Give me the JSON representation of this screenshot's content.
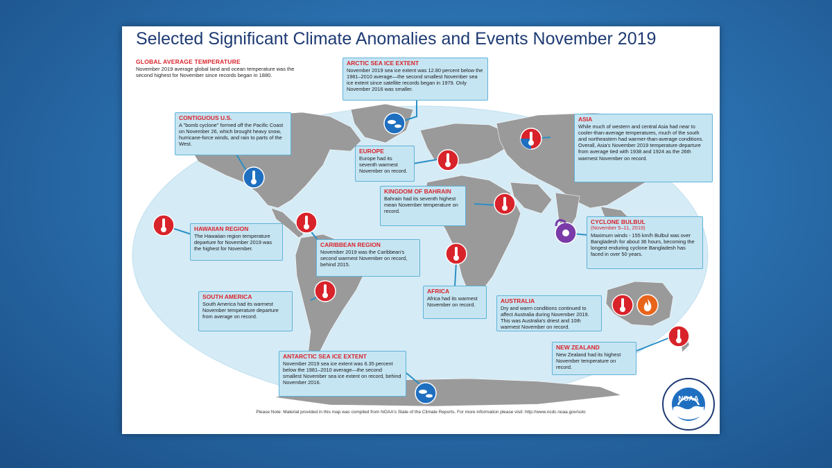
{
  "title": "Selected Significant Climate Anomalies and Events November 2019",
  "global": {
    "title": "GLOBAL AVERAGE TEMPERATURE",
    "text": "November 2019 average global land and ocean temperature was the second highest for November since records began in 1880."
  },
  "events": {
    "arctic": {
      "title": "ARCTIC SEA ICE EXTENT",
      "text": "November 2019 sea ice extent was 12.80 percent below the 1981–2010 average—the second smallest November sea ice extent since satellite records began in 1979. Only November 2016 was smaller.",
      "icon": "sea-ice-icon",
      "color": "#1f6fc0"
    },
    "contiguous_us": {
      "title": "CONTIGUOUS U.S.",
      "text": "A \"bomb cyclone\" formed off the Pacific Coast on November 26, which brought heavy snow, hurricane-force winds, and rain to parts of the West.",
      "icon": "thermometer-cool-icon",
      "color": "#1f6fc0"
    },
    "europe": {
      "title": "EUROPE",
      "text": "Europe had its seventh warmest November on record.",
      "icon": "thermometer-warm-icon",
      "color": "#d8232a"
    },
    "asia": {
      "title": "ASIA",
      "text": "While much of western and central Asia had near to cooler-than-average temperatures, much of the south and northeastern had warmer-than-average conditions. Overall, Asia's November 2019 temperature departure from average tied with 1938 and 1924 as the 26th warmest November on record.",
      "icon": "thermometer-mixed-icon",
      "color": "#d8232a"
    },
    "bahrain": {
      "title": "KINGDOM OF BAHRAIN",
      "text": "Bahrain had its seventh highest mean November temperature on record.",
      "icon": "thermometer-warm-icon",
      "color": "#d8232a"
    },
    "cyclone": {
      "title": "CYCLONE BULBUL",
      "subtitle": "(November 5–11, 2019)",
      "text": "Maximum winds - 155 km/h Bulbul was over Bangladesh for about 36 hours, becoming the longest enduring cyclone Bangladesh has faced in over 50 years.",
      "icon": "cyclone-icon",
      "color": "#7a3aa8"
    },
    "hawaii": {
      "title": "HAWAIIAN REGION",
      "text": "The Hawaiian region temperature departure for November 2019 was the highest for November.",
      "icon": "thermometer-warm-icon",
      "color": "#d8232a"
    },
    "caribbean": {
      "title": "CARIBBEAN REGION",
      "text": "November 2019 was the Caribbean's second warmest November on record, behind 2015.",
      "icon": "thermometer-warm-icon",
      "color": "#d8232a"
    },
    "africa": {
      "title": "AFRICA",
      "text": "Africa had its warmest November on record.",
      "icon": "thermometer-warm-icon",
      "color": "#d8232a"
    },
    "south_america": {
      "title": "SOUTH AMERICA",
      "text": "South America had its warmest November temperature departure from average on record.",
      "icon": "thermometer-warm-icon",
      "color": "#d8232a"
    },
    "australia": {
      "title": "AUSTRALIA",
      "text": "Dry and warm conditions continued to affect Australia during November 2019. This was Australia's driest and 10th warmest November on record.",
      "icon": "fire-icon",
      "color": "#e8641b"
    },
    "new_zealand": {
      "title": "NEW ZEALAND",
      "text": "New Zealand had its highest November temperature on record.",
      "icon": "thermometer-warm-icon",
      "color": "#d8232a"
    },
    "antarctic": {
      "title": "ANTARCTIC SEA ICE EXTENT",
      "text": "November 2019 sea ice extent was 6.35 percent below the 1981–2010 average—the second smallest November sea ice extent on record, behind November 2016.",
      "icon": "sea-ice-icon",
      "color": "#1f6fc0"
    }
  },
  "note": "Please Note: Material provided in this map was compiled from NOAA's State of the Climate Reports. For more information please visit: http://www.ncdc.noaa.gov/sotc",
  "logo": {
    "text": "NOAA",
    "ring_text": "NATIONAL OCEANIC AND ATMOSPHERIC ADMINISTRATION · U.S. DEPARTMENT OF COMMERCE"
  }
}
